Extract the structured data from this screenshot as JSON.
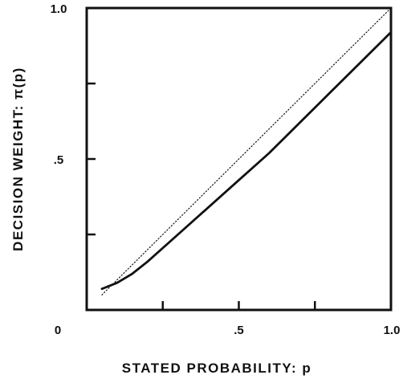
{
  "chart_data": {
    "type": "line",
    "xlabel": "STATED PROBABILITY: p",
    "ylabel": "DECISION WEIGHT: π(p)",
    "xlim": [
      0,
      1
    ],
    "ylim": [
      0,
      1
    ],
    "grid": false,
    "x_tick_labels": [
      {
        "value": 0,
        "label": "0"
      },
      {
        "value": 0.5,
        "label": ".5"
      },
      {
        "value": 1,
        "label": "1.0"
      }
    ],
    "y_tick_labels": [
      {
        "value": 0.5,
        "label": ".5"
      },
      {
        "value": 1,
        "label": "1.0"
      }
    ],
    "x_ticks": [
      0.25,
      0.5,
      0.75,
      1
    ],
    "y_ticks": [
      0.25,
      0.5,
      0.75,
      1
    ],
    "series": [
      {
        "style": "solid",
        "x": [
          0.05,
          0.1,
          0.15,
          0.2,
          0.3,
          0.4,
          0.5,
          0.6,
          0.7,
          0.8,
          0.9,
          1.0
        ],
        "y": [
          0.07,
          0.09,
          0.12,
          0.16,
          0.25,
          0.34,
          0.43,
          0.52,
          0.62,
          0.72,
          0.82,
          0.92
        ]
      },
      {
        "style": "dotted",
        "x": [
          0.05,
          1.0
        ],
        "y": [
          0.05,
          1.0
        ]
      }
    ],
    "colors": {
      "ink": "#111111",
      "background": "#ffffff"
    }
  }
}
